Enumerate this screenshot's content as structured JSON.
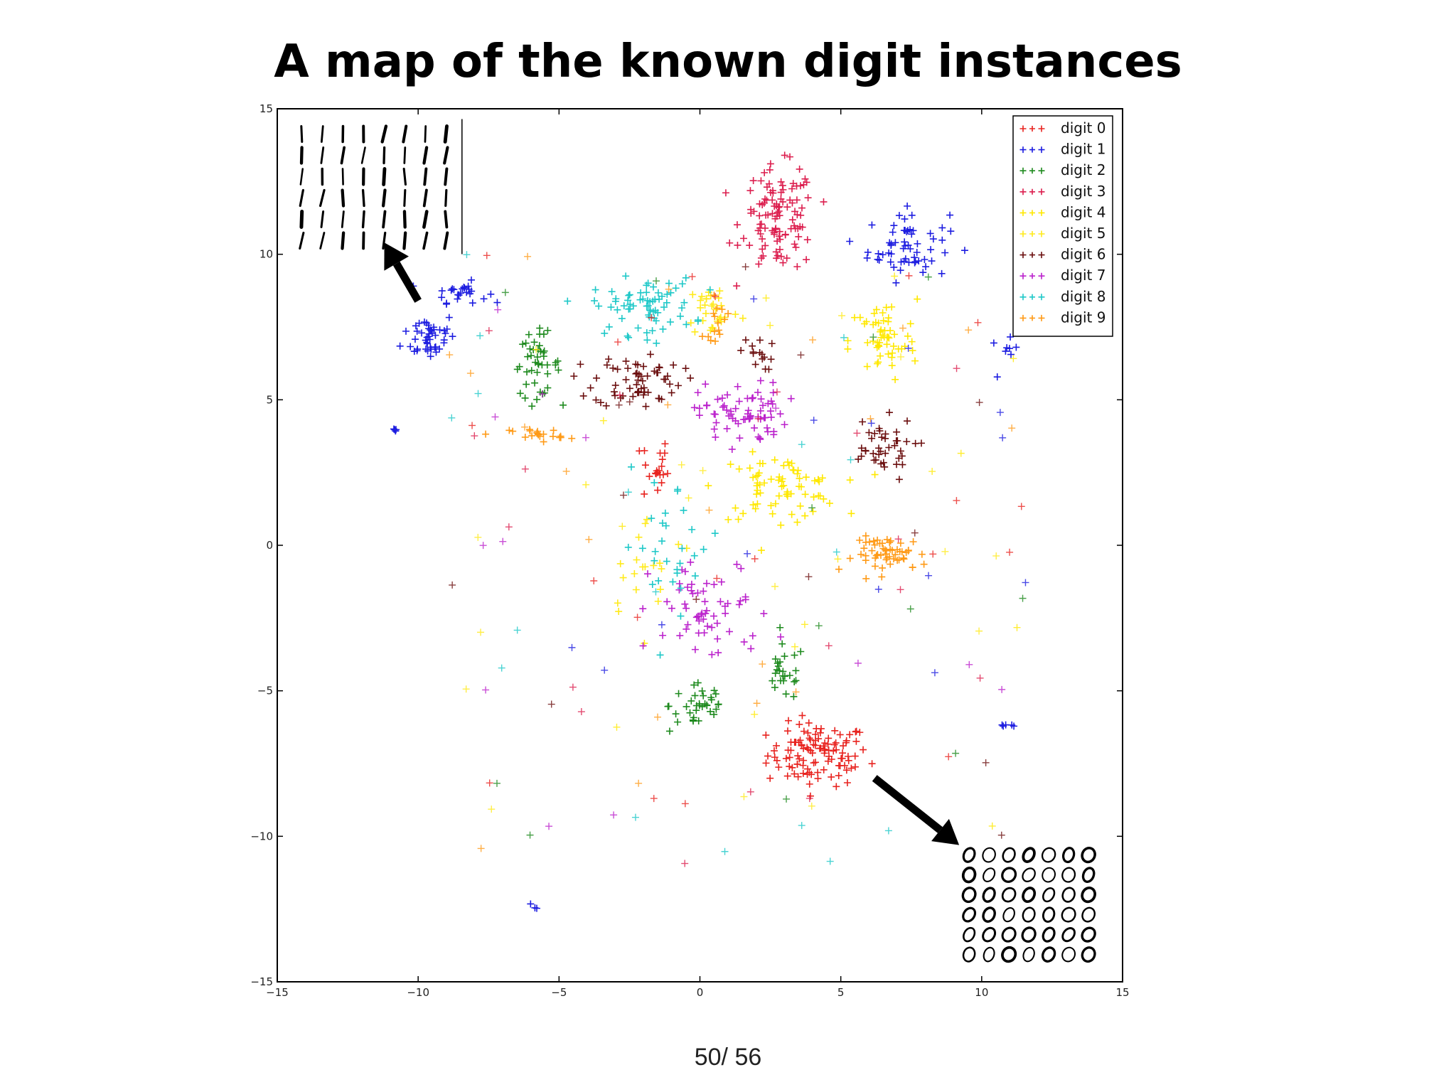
{
  "slide": {
    "title": "A map of the known digit instances",
    "page_number": "50/ 56"
  },
  "chart_data": {
    "type": "scatter",
    "title": "",
    "xlabel": "",
    "ylabel": "",
    "xlim": [
      -15,
      15
    ],
    "ylim": [
      -15,
      15
    ],
    "xticks": [
      "−15",
      "−10",
      "−5",
      "0",
      "5",
      "10",
      "15"
    ],
    "yticks": [
      "15",
      "10",
      "5",
      "0",
      "−5",
      "−10",
      "−15"
    ],
    "grid": false,
    "legend_position": "top-right",
    "marker": "+",
    "series": [
      {
        "name": "digit 0",
        "color": "#e8231f",
        "clusters": [
          {
            "center": [
              4.2,
              -7.2
            ],
            "spread": [
              1.5,
              0.9
            ],
            "count": 110
          },
          {
            "center": [
              -1.6,
              2.6
            ],
            "spread": [
              0.4,
              1.0
            ],
            "count": 20
          }
        ]
      },
      {
        "name": "digit 1",
        "color": "#1d1de0",
        "clusters": [
          {
            "center": [
              -9.6,
              7.2
            ],
            "spread": [
              0.8,
              0.7
            ],
            "count": 45
          },
          {
            "center": [
              -8.5,
              8.7
            ],
            "spread": [
              0.8,
              0.3
            ],
            "count": 25
          },
          {
            "center": [
              7.4,
              10.3
            ],
            "spread": [
              1.2,
              1.0
            ],
            "count": 60
          },
          {
            "center": [
              10.8,
              6.6
            ],
            "spread": [
              0.4,
              0.4
            ],
            "count": 8
          },
          {
            "center": [
              -10.8,
              4.0
            ],
            "spread": [
              0.1,
              0.1
            ],
            "count": 4
          },
          {
            "center": [
              10.9,
              -6.2
            ],
            "spread": [
              0.3,
              0.1
            ],
            "count": 5
          },
          {
            "center": [
              -5.8,
              -12.4
            ],
            "spread": [
              0.2,
              0.1
            ],
            "count": 3
          }
        ]
      },
      {
        "name": "digit 2",
        "color": "#1e8a1e",
        "clusters": [
          {
            "center": [
              -5.8,
              6.2
            ],
            "spread": [
              0.7,
              0.9
            ],
            "count": 45
          },
          {
            "center": [
              0.0,
              -5.5
            ],
            "spread": [
              0.9,
              0.8
            ],
            "count": 35
          },
          {
            "center": [
              3.0,
              -4.4
            ],
            "spread": [
              0.6,
              0.8
            ],
            "count": 25
          }
        ]
      },
      {
        "name": "digit 3",
        "color": "#dc1e4e",
        "clusters": [
          {
            "center": [
              2.8,
              11.2
            ],
            "spread": [
              1.1,
              1.5
            ],
            "count": 110
          }
        ]
      },
      {
        "name": "digit 4",
        "color": "#ffe800",
        "clusters": [
          {
            "center": [
              2.8,
              2.0
            ],
            "spread": [
              1.8,
              0.9
            ],
            "count": 75
          },
          {
            "center": [
              6.5,
              7.0
            ],
            "spread": [
              1.0,
              1.2
            ],
            "count": 55
          }
        ]
      },
      {
        "name": "digit 5",
        "color": "#ffea1a",
        "clusters": [
          {
            "center": [
              0.5,
              8.1
            ],
            "spread": [
              0.8,
              0.8
            ],
            "count": 30
          },
          {
            "center": [
              -1.8,
              -0.8
            ],
            "spread": [
              1.5,
              1.5
            ],
            "count": 20
          }
        ]
      },
      {
        "name": "digit 6",
        "color": "#6b0f0f",
        "clusters": [
          {
            "center": [
              -2.2,
              5.7
            ],
            "spread": [
              1.3,
              0.8
            ],
            "count": 60
          },
          {
            "center": [
              6.3,
              3.3
            ],
            "spread": [
              1.1,
              0.9
            ],
            "count": 40
          },
          {
            "center": [
              2.0,
              6.6
            ],
            "spread": [
              0.5,
              0.5
            ],
            "count": 15
          }
        ]
      },
      {
        "name": "digit 7",
        "color": "#bb22cc",
        "clusters": [
          {
            "center": [
              1.5,
              4.5
            ],
            "spread": [
              1.3,
              0.9
            ],
            "count": 70
          },
          {
            "center": [
              0.4,
              -2.3
            ],
            "spread": [
              1.8,
              1.5
            ],
            "count": 60
          }
        ]
      },
      {
        "name": "digit 8",
        "color": "#1ec8c8",
        "clusters": [
          {
            "center": [
              -2.0,
              8.2
            ],
            "spread": [
              1.5,
              0.8
            ],
            "count": 70
          },
          {
            "center": [
              -1.0,
              0.0
            ],
            "spread": [
              1.5,
              2.0
            ],
            "count": 30
          }
        ]
      },
      {
        "name": "digit 9",
        "color": "#ff9a16",
        "clusters": [
          {
            "center": [
              6.8,
              -0.3
            ],
            "spread": [
              1.1,
              0.5
            ],
            "count": 55
          },
          {
            "center": [
              -5.8,
              3.8
            ],
            "spread": [
              0.8,
              0.2
            ],
            "count": 20
          },
          {
            "center": [
              0.6,
              7.8
            ],
            "spread": [
              0.4,
              0.6
            ],
            "count": 15
          }
        ]
      }
    ],
    "insets": [
      {
        "name": "ones-inset",
        "glyph": "/",
        "rows": 6,
        "cols": 8,
        "anchor": [
          -14.5,
          14.5
        ]
      },
      {
        "name": "zeros-inset",
        "glyph": "0",
        "rows": 6,
        "cols": 7,
        "anchor": [
          9.2,
          -10.3
        ]
      }
    ],
    "arrows": [
      {
        "name": "arrow-to-ones-cluster",
        "from": [
          -10.0,
          8.4
        ],
        "to": [
          -11.2,
          10.4
        ]
      },
      {
        "name": "arrow-to-zeros-cluster",
        "from": [
          6.2,
          -8.0
        ],
        "to": [
          9.2,
          -10.3
        ]
      }
    ]
  }
}
